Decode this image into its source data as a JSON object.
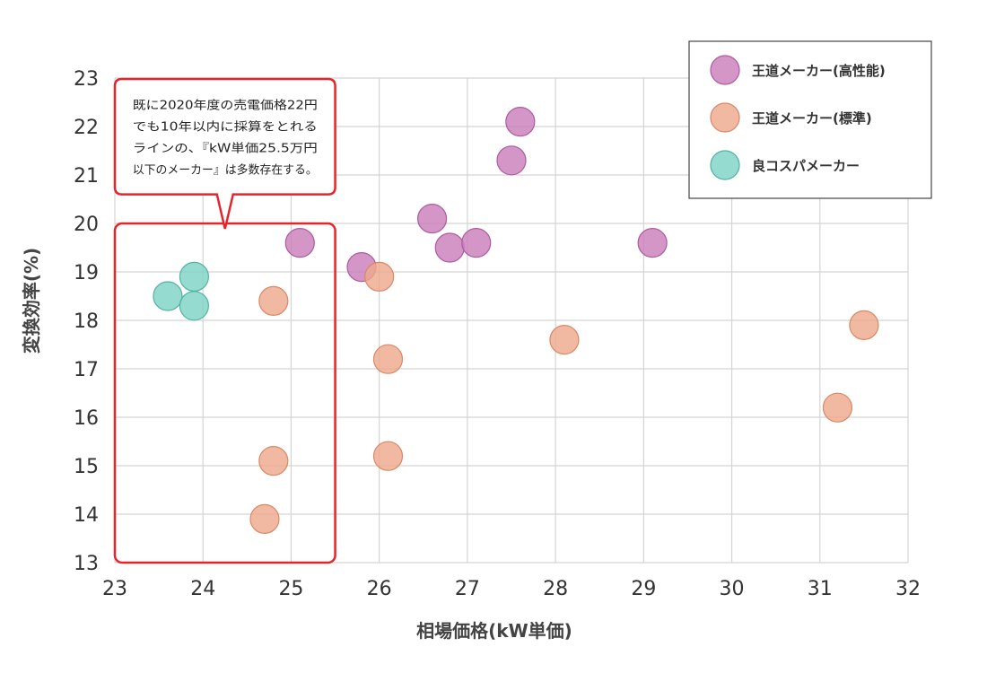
{
  "chart_data": {
    "type": "scatter",
    "title": "",
    "xlabel": "相場価格(kW単価)",
    "ylabel": "変換効率(%)",
    "xlim": [
      23,
      32
    ],
    "ylim": [
      13,
      23
    ],
    "xticks": [
      23,
      24,
      25,
      26,
      27,
      28,
      29,
      30,
      31,
      32
    ],
    "yticks": [
      13,
      14,
      15,
      16,
      17,
      18,
      19,
      20,
      21,
      22,
      23
    ],
    "grid": true,
    "legend_position": "top-right",
    "series": [
      {
        "name": "王道メーカー(高性能)",
        "color": "#c97fb9",
        "stroke": "#b05a9f",
        "points": [
          {
            "x": 25.1,
            "y": 19.6
          },
          {
            "x": 25.8,
            "y": 19.1
          },
          {
            "x": 26.6,
            "y": 20.1
          },
          {
            "x": 26.8,
            "y": 19.5
          },
          {
            "x": 27.1,
            "y": 19.6
          },
          {
            "x": 27.5,
            "y": 21.3
          },
          {
            "x": 27.6,
            "y": 22.1
          },
          {
            "x": 29.1,
            "y": 19.6
          }
        ]
      },
      {
        "name": "王道メーカー(標準)",
        "color": "#eea98c",
        "stroke": "#d98865",
        "points": [
          {
            "x": 24.8,
            "y": 18.4
          },
          {
            "x": 24.8,
            "y": 15.1
          },
          {
            "x": 24.7,
            "y": 13.9
          },
          {
            "x": 26.0,
            "y": 18.9
          },
          {
            "x": 26.1,
            "y": 17.2
          },
          {
            "x": 26.1,
            "y": 15.2
          },
          {
            "x": 28.1,
            "y": 17.6
          },
          {
            "x": 31.2,
            "y": 16.2
          },
          {
            "x": 31.5,
            "y": 17.9
          }
        ]
      },
      {
        "name": "良コスパメーカー",
        "color": "#7fd3c6",
        "stroke": "#4fb3a4",
        "points": [
          {
            "x": 23.6,
            "y": 18.5
          },
          {
            "x": 23.9,
            "y": 18.9
          },
          {
            "x": 23.9,
            "y": 18.3
          }
        ]
      }
    ],
    "callout": {
      "lines": [
        "既に2020年度の売電価格22円",
        "でも10年以内に採算をとれる",
        "ラインの、『kW単価25.5万円",
        "以下のメーカー』は多数存在する。"
      ],
      "highlight_x_range": [
        23,
        25.5
      ],
      "highlight_y_range": [
        13,
        20
      ],
      "color": "#e8242b"
    }
  }
}
